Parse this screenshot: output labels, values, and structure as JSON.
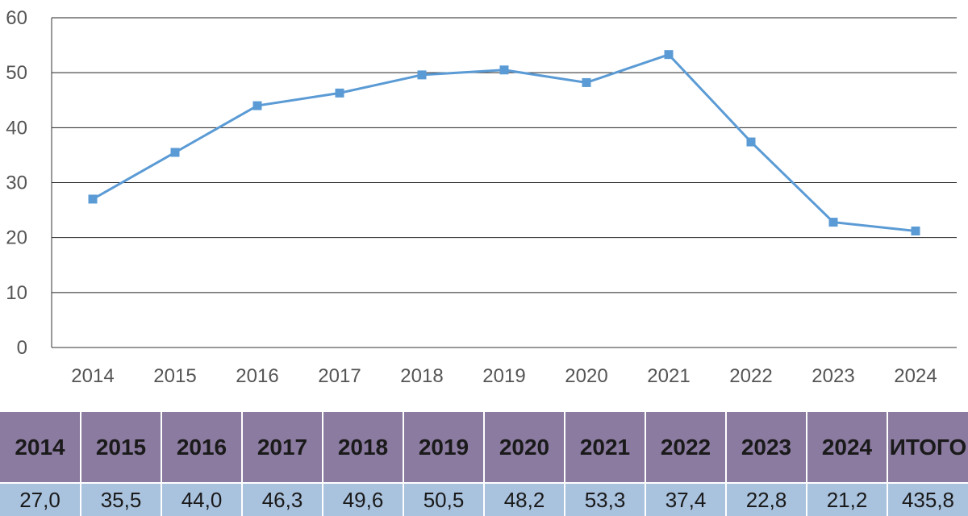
{
  "chart_data": {
    "type": "line",
    "title": "",
    "xlabel": "",
    "ylabel": "",
    "ylim": [
      0,
      60
    ],
    "yticks": [
      0,
      10,
      20,
      30,
      40,
      50,
      60
    ],
    "grid": true,
    "categories": [
      "2014",
      "2015",
      "2016",
      "2017",
      "2018",
      "2019",
      "2020",
      "2021",
      "2022",
      "2023",
      "2024"
    ],
    "series": [
      {
        "name": "",
        "color": "#5b9bd5",
        "marker": "square",
        "values": [
          27.0,
          35.5,
          44.0,
          46.3,
          49.6,
          50.5,
          48.2,
          53.3,
          37.4,
          22.8,
          21.2
        ]
      }
    ]
  },
  "table": {
    "headers": [
      "2014",
      "2015",
      "2016",
      "2017",
      "2018",
      "2019",
      "2020",
      "2021",
      "2022",
      "2023",
      "2024",
      "ИТОГО"
    ],
    "values": [
      "27,0",
      "35,5",
      "44,0",
      "46,3",
      "49,6",
      "50,5",
      "48,2",
      "53,3",
      "37,4",
      "22,8",
      "21,2",
      "435,8"
    ]
  },
  "colors": {
    "line": "#5b9bd5",
    "header_bg": "#8b7ba0",
    "value_bg": "#a9c2de"
  }
}
